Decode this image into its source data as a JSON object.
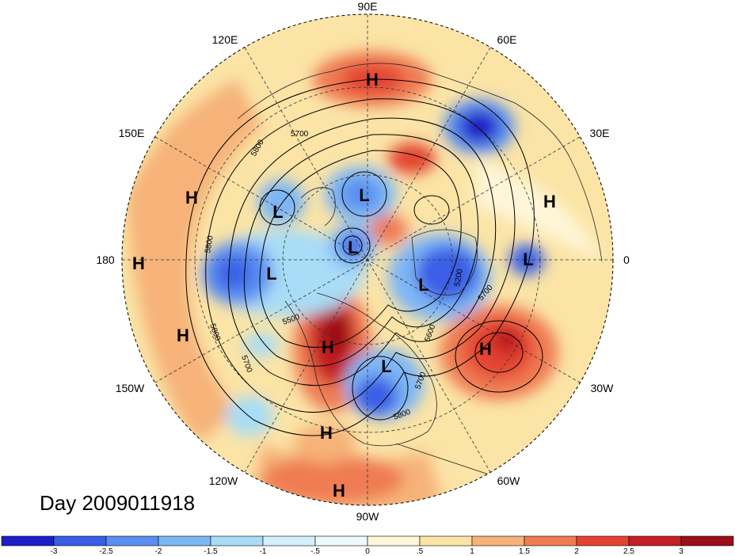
{
  "title": "Day 2009011918",
  "projection": "north-polar-stereographic",
  "longitude_labels": [
    "90E",
    "60E",
    "30E",
    "0",
    "30W",
    "60W",
    "90W",
    "120W",
    "150W",
    "180",
    "150E",
    "120E"
  ],
  "pressure_centers": [
    {
      "type": "H",
      "region": "Siberia"
    },
    {
      "type": "H",
      "region": "Europe"
    },
    {
      "type": "H",
      "region": "North Pacific"
    },
    {
      "type": "H",
      "region": "Date line"
    },
    {
      "type": "H",
      "region": "Gulf of Alaska"
    },
    {
      "type": "H",
      "region": "Western North America"
    },
    {
      "type": "H",
      "region": "Central Atlantic"
    },
    {
      "type": "H",
      "region": "Mexico"
    },
    {
      "type": "H",
      "region": "Caribbean"
    },
    {
      "type": "L",
      "region": "Kamchatka"
    },
    {
      "type": "L",
      "region": "East Siberian Sea"
    },
    {
      "type": "L",
      "region": "Arctic Ocean"
    },
    {
      "type": "L",
      "region": "Bering Sea"
    },
    {
      "type": "L",
      "region": "Greenland"
    },
    {
      "type": "L",
      "region": "Mediterranean"
    },
    {
      "type": "L",
      "region": "Eastern North America"
    }
  ],
  "contour_labels": [
    "5800",
    "5700",
    "5800",
    "5800",
    "5500",
    "5700",
    "5200",
    "5700",
    "5600",
    "5700",
    "5800"
  ],
  "colorbar": {
    "ticks": [
      "-3",
      "-2.5",
      "-2",
      "-1.5",
      "-1",
      "-.5",
      "0",
      ".5",
      "1",
      "1.5",
      "2",
      "2.5",
      "3"
    ],
    "colors": [
      "#1e1ec8",
      "#3a5ee6",
      "#5a8ef0",
      "#7db6f5",
      "#a8dcf7",
      "#d4f1fb",
      "#eef9fd",
      "#fef6d8",
      "#fbe4a6",
      "#f6b279",
      "#ef7c53",
      "#e34432",
      "#c21f24",
      "#9b0f19"
    ]
  }
}
